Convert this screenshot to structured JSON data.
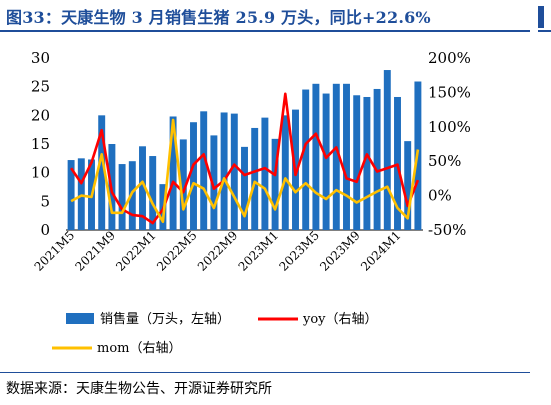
{
  "title": "图33：天康生物 3 月销售生猪 25.9 万头，同比+22.6%",
  "source": "数据来源：天康生物公告、开源证券研究所",
  "colors": {
    "bar": "#1f6fbf",
    "yoy": "#ff0000",
    "mom": "#ffc000",
    "title": "#1f4e9a"
  },
  "chart_data": {
    "type": "bar",
    "x_tick_labels": [
      "2021M5",
      "2021M9",
      "2022M1",
      "2022M5",
      "2022M9",
      "2023M1",
      "2023M5",
      "2023M9",
      "2024M1"
    ],
    "x_tick_index": [
      0,
      4,
      8,
      12,
      16,
      20,
      24,
      28,
      32
    ],
    "categories": [
      "2021M5",
      "2021M6",
      "2021M7",
      "2021M8",
      "2021M9",
      "2021M10",
      "2021M11",
      "2021M12",
      "2022M1",
      "2022M2",
      "2022M3",
      "2022M4",
      "2022M5",
      "2022M6",
      "2022M7",
      "2022M8",
      "2022M9",
      "2022M10",
      "2022M11",
      "2022M12",
      "2023M1",
      "2023M2",
      "2023M3",
      "2023M4",
      "2023M5",
      "2023M6",
      "2023M7",
      "2023M8",
      "2023M9",
      "2023M10",
      "2023M11",
      "2023M12",
      "2024M1",
      "2024M2",
      "2024M3"
    ],
    "left_axis": {
      "min": 0,
      "max": 30,
      "ticks": [
        0,
        5,
        10,
        15,
        20,
        25,
        30
      ]
    },
    "right_axis": {
      "min": -50,
      "max": 200,
      "ticks": [
        "-50%",
        "0%",
        "50%",
        "100%",
        "150%",
        "200%"
      ],
      "tick_values": [
        -50,
        0,
        50,
        100,
        150,
        200
      ]
    },
    "series": [
      {
        "name": "销售量（万头，左轴）",
        "type": "bar",
        "axis": "left",
        "values": [
          12.2,
          12.5,
          12.3,
          20.0,
          15.0,
          11.5,
          12.0,
          14.6,
          12.9,
          8.0,
          19.8,
          15.8,
          18.8,
          20.7,
          16.5,
          20.5,
          20.3,
          14.5,
          17.8,
          19.6,
          15.9,
          20.0,
          21.0,
          24.5,
          25.5,
          23.8,
          25.5,
          25.5,
          23.5,
          23.2,
          24.6,
          27.9,
          23.2,
          15.5,
          25.9
        ]
      },
      {
        "name": "yoy（右轴）",
        "type": "line",
        "axis": "right",
        "values": [
          40,
          18,
          48,
          95,
          5,
          -20,
          -28,
          -30,
          -40,
          -20,
          20,
          5,
          45,
          60,
          10,
          22,
          45,
          30,
          35,
          40,
          30,
          148,
          30,
          75,
          90,
          55,
          70,
          25,
          20,
          60,
          35,
          40,
          45,
          -15,
          22.6
        ]
      },
      {
        "name": "mom（右轴）",
        "type": "line",
        "axis": "right",
        "values": [
          -8,
          0,
          -2,
          60,
          -25,
          -25,
          5,
          20,
          -12,
          -38,
          110,
          -20,
          18,
          10,
          -18,
          25,
          -2,
          -30,
          20,
          10,
          -20,
          25,
          5,
          18,
          4,
          -5,
          8,
          0,
          -10,
          -2,
          6,
          13,
          -18,
          -33,
          67
        ]
      }
    ]
  }
}
